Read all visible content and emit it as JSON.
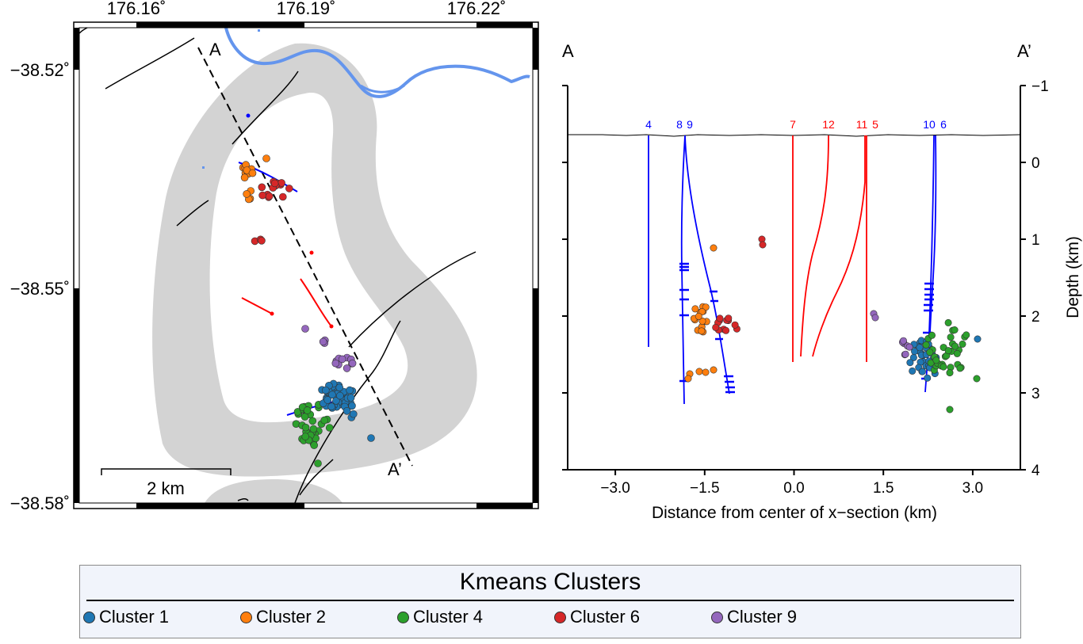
{
  "map": {
    "lon_ticks": [
      "176.16˚",
      "176.19˚",
      "176.22˚"
    ],
    "lat_ticks": [
      "−38.52˚",
      "−38.55˚",
      "−38.58˚"
    ],
    "scalebar_label": "2 km",
    "section_start_label": "A",
    "section_end_label": "A’",
    "colors": {
      "river": "#6495ed",
      "caldera": "#d3d3d3",
      "faults": "#000000",
      "injection_wells": "#ff0000",
      "production_wells": "#0000ff"
    }
  },
  "chart_data": {
    "type": "scatter",
    "xlabel": "Distance from center of x−section (km)",
    "ylabel": "Depth (km)",
    "xlim": [
      -3.8,
      3.8
    ],
    "ylim": [
      4,
      -1
    ],
    "x_ticks": [
      "−3.0",
      "−1.5",
      "0.0",
      "1.5",
      "3.0"
    ],
    "y_ticks": [
      "−1",
      "0",
      "1",
      "2",
      "3",
      "4"
    ],
    "left_label": "A",
    "right_label": "A’",
    "wells": [
      {
        "label": "4",
        "color": "#0000ff"
      },
      {
        "label": "8",
        "color": "#0000ff"
      },
      {
        "label": "9",
        "color": "#0000ff"
      },
      {
        "label": "7",
        "color": "#ff0000"
      },
      {
        "label": "12",
        "color": "#ff0000"
      },
      {
        "label": "11",
        "color": "#ff0000"
      },
      {
        "label": "5",
        "color": "#ff0000"
      },
      {
        "label": "10",
        "color": "#0000ff"
      },
      {
        "label": "6",
        "color": "#0000ff"
      }
    ],
    "series": [
      {
        "name": "Cluster 1",
        "color": "#1f77b4"
      },
      {
        "name": "Cluster 2",
        "color": "#ff7f0e"
      },
      {
        "name": "Cluster 4",
        "color": "#2ca02c"
      },
      {
        "name": "Cluster 6",
        "color": "#d62728"
      },
      {
        "name": "Cluster 9",
        "color": "#9467bd"
      }
    ]
  },
  "legend": {
    "title": "Kmeans Clusters",
    "items": [
      {
        "label": "Cluster 1",
        "color": "#1f77b4"
      },
      {
        "label": "Cluster 2",
        "color": "#ff7f0e"
      },
      {
        "label": "Cluster 4",
        "color": "#2ca02c"
      },
      {
        "label": "Cluster 6",
        "color": "#d62728"
      },
      {
        "label": "Cluster 9",
        "color": "#9467bd"
      }
    ]
  }
}
